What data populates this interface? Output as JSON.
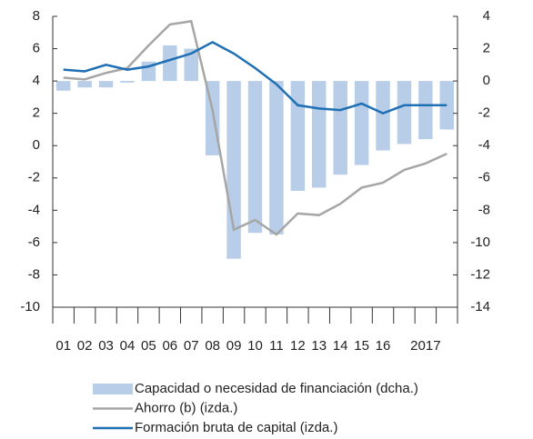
{
  "chart_data": {
    "type": "bar-line",
    "categories": [
      "01",
      "02",
      "03",
      "04",
      "05",
      "06",
      "07",
      "08",
      "09",
      "10",
      "11",
      "12",
      "13",
      "14",
      "15",
      "16",
      null,
      "2017",
      null
    ],
    "series": [
      {
        "name": "Capacidad o necesidad de financiación (dcha.)",
        "type": "bar",
        "axis": "y2",
        "color": "#b8cde7",
        "values": [
          -0.6,
          -0.4,
          -0.4,
          -0.1,
          1.2,
          2.2,
          2.0,
          -4.6,
          -11.0,
          -9.4,
          -9.5,
          -6.8,
          -6.6,
          -5.8,
          -5.2,
          -4.3,
          -3.9,
          -3.6,
          -3.0
        ]
      },
      {
        "name": "Ahorro (b) (izda.)",
        "type": "line",
        "color": "#a6a6a6",
        "values": [
          4.2,
          4.1,
          4.5,
          4.8,
          6.2,
          7.5,
          7.7,
          2.2,
          -5.2,
          -4.6,
          -5.5,
          -4.2,
          -4.3,
          -3.6,
          -2.6,
          -2.3,
          -1.5,
          -1.1,
          -0.5
        ]
      },
      {
        "name": "Formación bruta de capital (izda.)",
        "type": "line",
        "color": "#1f6fb4",
        "values": [
          4.7,
          4.6,
          5.0,
          4.7,
          4.9,
          5.3,
          5.7,
          6.4,
          5.7,
          4.8,
          3.8,
          2.5,
          2.3,
          2.2,
          2.6,
          2.0,
          2.5,
          2.5,
          2.5
        ]
      }
    ],
    "ylim": [
      -10,
      8
    ],
    "yticks": [
      -10,
      -8,
      -6,
      -4,
      -2,
      0,
      2,
      4,
      6,
      8
    ],
    "y2lim": [
      -14,
      4
    ],
    "y2ticks": [
      -14,
      -12,
      -10,
      -8,
      -6,
      -4,
      -2,
      0,
      2,
      4
    ]
  }
}
